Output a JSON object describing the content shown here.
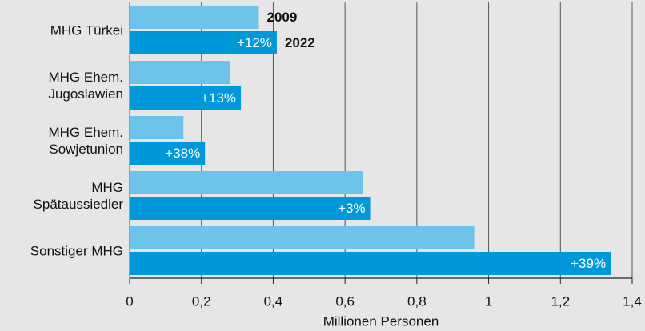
{
  "chart_data": {
    "type": "bar",
    "orientation": "horizontal",
    "categories": [
      "MHG Türkei",
      "MHG Ehem.\nJugoslawien",
      "MHG Ehem.\nSowjetunion",
      "MHG\nSpätaussiedler",
      "Sonstiger MHG"
    ],
    "series": [
      {
        "name": "2009",
        "color": "#6cc4ea",
        "values": [
          0.36,
          0.28,
          0.15,
          0.65,
          0.96
        ]
      },
      {
        "name": "2022",
        "color": "#0098d8",
        "values": [
          0.41,
          0.31,
          0.21,
          0.67,
          1.34
        ]
      }
    ],
    "change_labels": [
      "+12%",
      "+13%",
      "+38%",
      "+3%",
      "+39%"
    ],
    "xlabel": "Millionen Personen",
    "xlim": [
      0,
      1.4
    ],
    "xticks": [
      0,
      {
        "value": 0.2,
        "label": "0,2"
      },
      {
        "value": 0.4,
        "label": "0,4"
      },
      {
        "value": 0.6,
        "label": "0,6"
      },
      {
        "value": 0.8,
        "label": "0,8"
      },
      1,
      {
        "value": 1.2,
        "label": "1,2"
      },
      {
        "value": 1.4,
        "label": "1,4"
      }
    ],
    "grid": true
  }
}
